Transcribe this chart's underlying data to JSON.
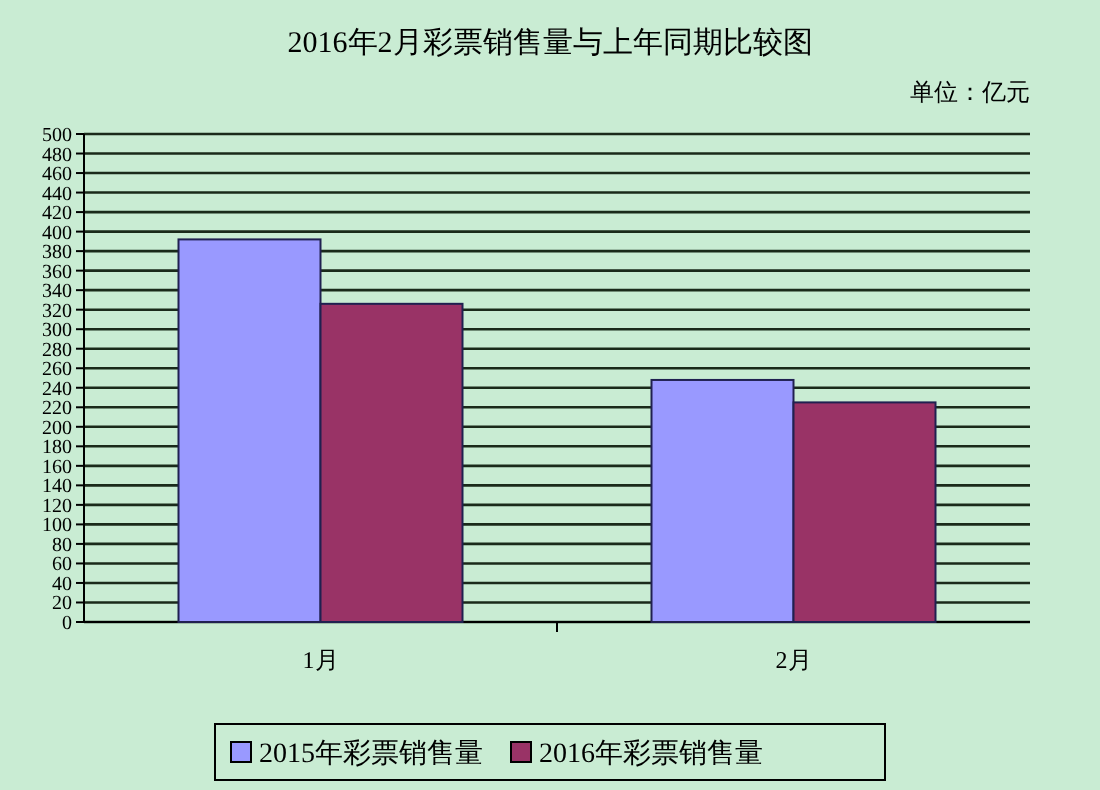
{
  "chart_data": {
    "type": "bar",
    "title": "2016年2月彩票销售量与上年同期比较图",
    "annotations": [
      "单位：亿元"
    ],
    "categories": [
      "1月",
      "2月"
    ],
    "series": [
      {
        "name": "2015年彩票销售量",
        "color": "#9999ff",
        "values": [
          392,
          248
        ]
      },
      {
        "name": "2016年彩票销售量",
        "color": "#993366",
        "values": [
          326,
          225
        ]
      }
    ],
    "ylim": [
      0,
      500
    ],
    "yticks": [
      0,
      20,
      40,
      60,
      80,
      100,
      120,
      140,
      160,
      180,
      200,
      220,
      240,
      260,
      280,
      300,
      320,
      340,
      360,
      380,
      400,
      420,
      440,
      460,
      480,
      500
    ],
    "grid": "y",
    "legend": "bottom"
  }
}
